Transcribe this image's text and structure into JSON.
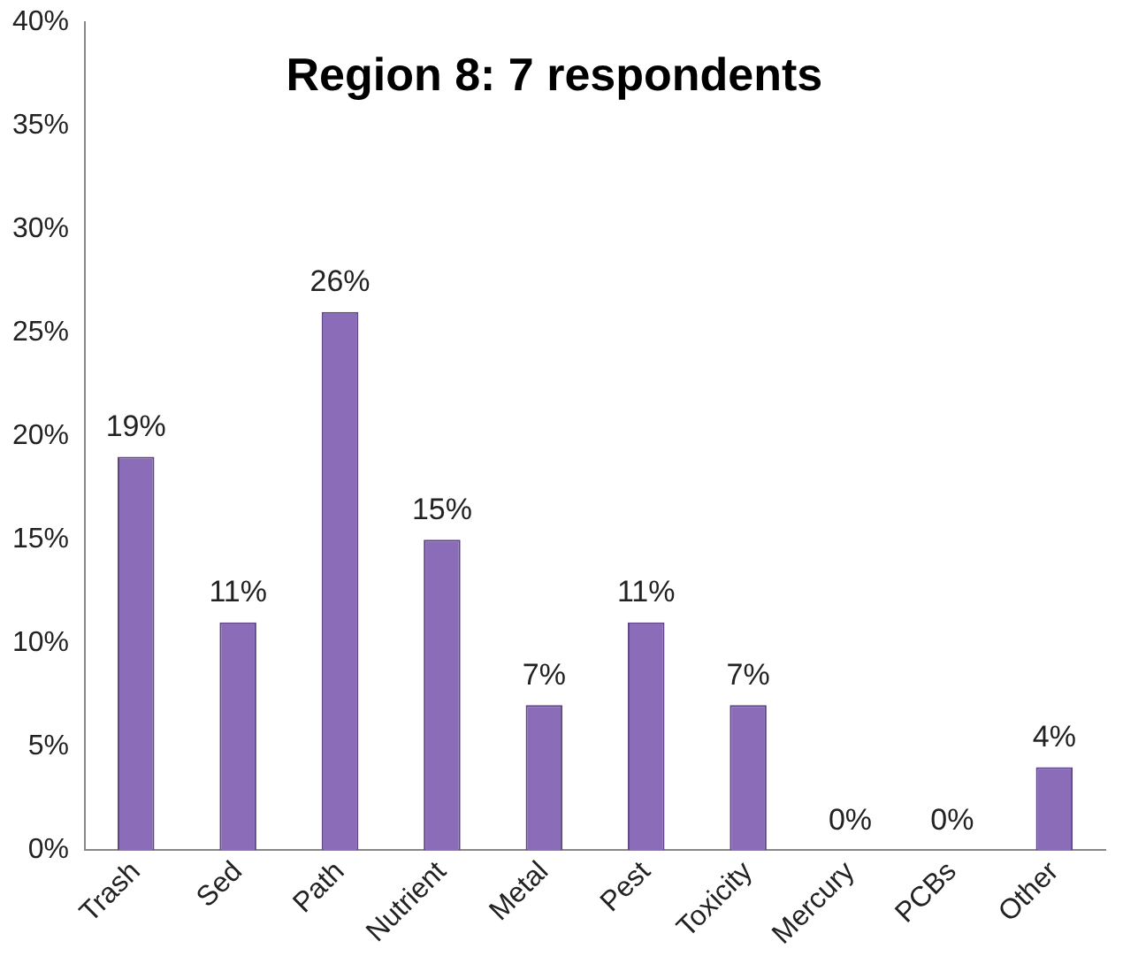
{
  "chart_data": {
    "type": "bar",
    "title": "Region 8: 7 respondents",
    "categories": [
      "Trash",
      "Sed",
      "Path",
      "Nutrient",
      "Metal",
      "Pest",
      "Toxicity",
      "Mercury",
      "PCBs",
      "Other"
    ],
    "values": [
      19,
      11,
      26,
      15,
      7,
      11,
      7,
      0,
      0,
      4
    ],
    "value_labels": [
      "19%",
      "11%",
      "26%",
      "15%",
      "7%",
      "11%",
      "7%",
      "0%",
      "0%",
      "4%"
    ],
    "color": "#8b6cb8",
    "ylim": [
      0,
      40
    ],
    "yticks": [
      {
        "value": 0,
        "label": "0%"
      },
      {
        "value": 5,
        "label": "5%"
      },
      {
        "value": 10,
        "label": "10%"
      },
      {
        "value": 15,
        "label": "15%"
      },
      {
        "value": 20,
        "label": "20%"
      },
      {
        "value": 25,
        "label": "25%"
      },
      {
        "value": 30,
        "label": "30%"
      },
      {
        "value": 35,
        "label": "35%"
      },
      {
        "value": 40,
        "label": "40%"
      }
    ],
    "grid": false,
    "legend": false
  }
}
